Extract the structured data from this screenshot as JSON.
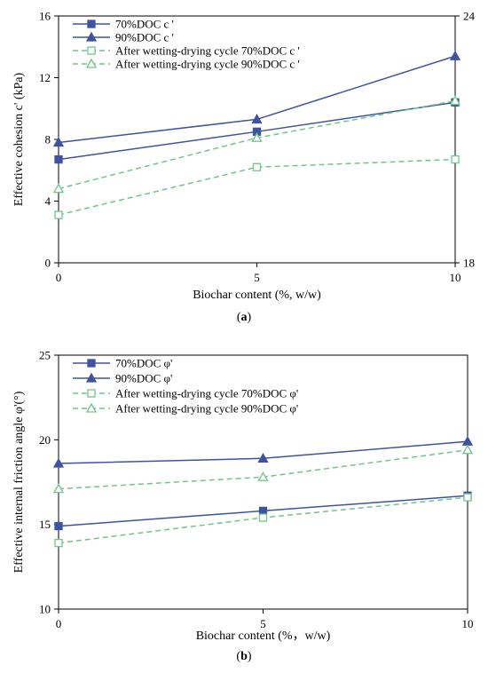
{
  "panels": {
    "a": {
      "label_prefix": "(",
      "label_letter": "a",
      "label_suffix": ")"
    },
    "b": {
      "label_prefix": "(",
      "label_letter": "b",
      "label_suffix": ")"
    }
  },
  "colors": {
    "solid": "#3f53a0",
    "dashed": "#6fc68a"
  },
  "chart_data": [
    {
      "type": "line",
      "xlabel": "Biochar content (%, w/w)",
      "ylabel": "Effective cohesion c' (kPa)",
      "x": [
        0,
        5,
        10
      ],
      "xticks": [
        "0",
        "5",
        "10"
      ],
      "ylim": [
        0,
        16
      ],
      "yticks": [
        "0",
        "4",
        "8",
        "12",
        "16"
      ],
      "y2lim": [
        18,
        24
      ],
      "y2ticks": [
        "18",
        "24"
      ],
      "grid": false,
      "legend_position": "top-left",
      "series": [
        {
          "name": "70%DOC c '",
          "values": [
            6.7,
            8.5,
            10.4
          ],
          "marker": "square",
          "filled": true,
          "dashed": false
        },
        {
          "name": "90%DOC c '",
          "values": [
            7.8,
            9.3,
            13.4
          ],
          "marker": "triangle",
          "filled": true,
          "dashed": false
        },
        {
          "name": "After wetting-drying cycle 70%DOC c '",
          "values": [
            3.1,
            6.2,
            6.7
          ],
          "marker": "square",
          "filled": false,
          "dashed": true
        },
        {
          "name": "After wetting-drying cycle 90%DOC c '",
          "values": [
            4.8,
            8.1,
            10.5
          ],
          "marker": "triangle",
          "filled": false,
          "dashed": true
        }
      ]
    },
    {
      "type": "line",
      "xlabel": "Biochar content (%，w/w)",
      "ylabel": "Effective internal friction angle φ'(°)",
      "x": [
        0,
        5,
        10
      ],
      "xticks": [
        "0",
        "5",
        "10"
      ],
      "ylim": [
        10,
        25
      ],
      "yticks": [
        "10",
        "15",
        "20",
        "25"
      ],
      "grid": false,
      "legend_position": "top-left",
      "series": [
        {
          "name": "70%DOC φ'",
          "values": [
            14.9,
            15.8,
            16.7
          ],
          "marker": "square",
          "filled": true,
          "dashed": false
        },
        {
          "name": "90%DOC φ'",
          "values": [
            18.6,
            18.9,
            19.9
          ],
          "marker": "triangle",
          "filled": true,
          "dashed": false
        },
        {
          "name": "After wetting-drying cycle 70%DOC φ'",
          "values": [
            13.9,
            15.4,
            16.6
          ],
          "marker": "square",
          "filled": false,
          "dashed": true
        },
        {
          "name": "After wetting-drying cycle 90%DOC φ'",
          "values": [
            17.1,
            17.8,
            19.4
          ],
          "marker": "triangle",
          "filled": false,
          "dashed": true
        }
      ]
    }
  ]
}
